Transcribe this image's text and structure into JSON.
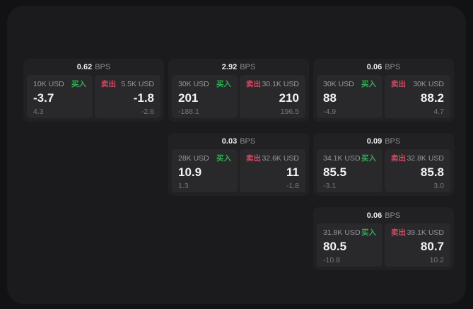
{
  "labels": {
    "bps_unit": "BPS",
    "buy": "买入",
    "sell": "卖出"
  },
  "colors": {
    "buy-color": "#2fae54",
    "sell-color": "#d34a62",
    "surface": "#1b1b1d",
    "card": "#212124",
    "panel": "#29292c"
  },
  "cards": [
    {
      "bps": "0.62",
      "buy": {
        "size": "10K USD",
        "price": "-3.7",
        "sub": "4.3"
      },
      "sell": {
        "size": "5.5K USD",
        "price": "-1.8",
        "sub": "-2.6"
      }
    },
    {
      "bps": "2.92",
      "buy": {
        "size": "30K USD",
        "price": "201",
        "sub": "-188.1"
      },
      "sell": {
        "size": "30.1K USD",
        "price": "210",
        "sub": "196.5"
      }
    },
    {
      "bps": "0.06",
      "buy": {
        "size": "30K USD",
        "price": "88",
        "sub": "-4.9"
      },
      "sell": {
        "size": "30K USD",
        "price": "88.2",
        "sub": "4.7"
      }
    },
    {
      "bps": "0.03",
      "buy": {
        "size": "28K USD",
        "price": "10.9",
        "sub": "1.3"
      },
      "sell": {
        "size": "32.6K USD",
        "price": "11",
        "sub": "-1.8"
      }
    },
    {
      "bps": "0.09",
      "buy": {
        "size": "34.1K USD",
        "price": "85.5",
        "sub": "-3.1"
      },
      "sell": {
        "size": "32.8K USD",
        "price": "85.8",
        "sub": "3.0"
      }
    },
    {
      "bps": "0.06",
      "buy": {
        "size": "31.8K USD",
        "price": "80.5",
        "sub": "-10.8"
      },
      "sell": {
        "size": "39.1K USD",
        "price": "80.7",
        "sub": "10.2"
      }
    }
  ]
}
